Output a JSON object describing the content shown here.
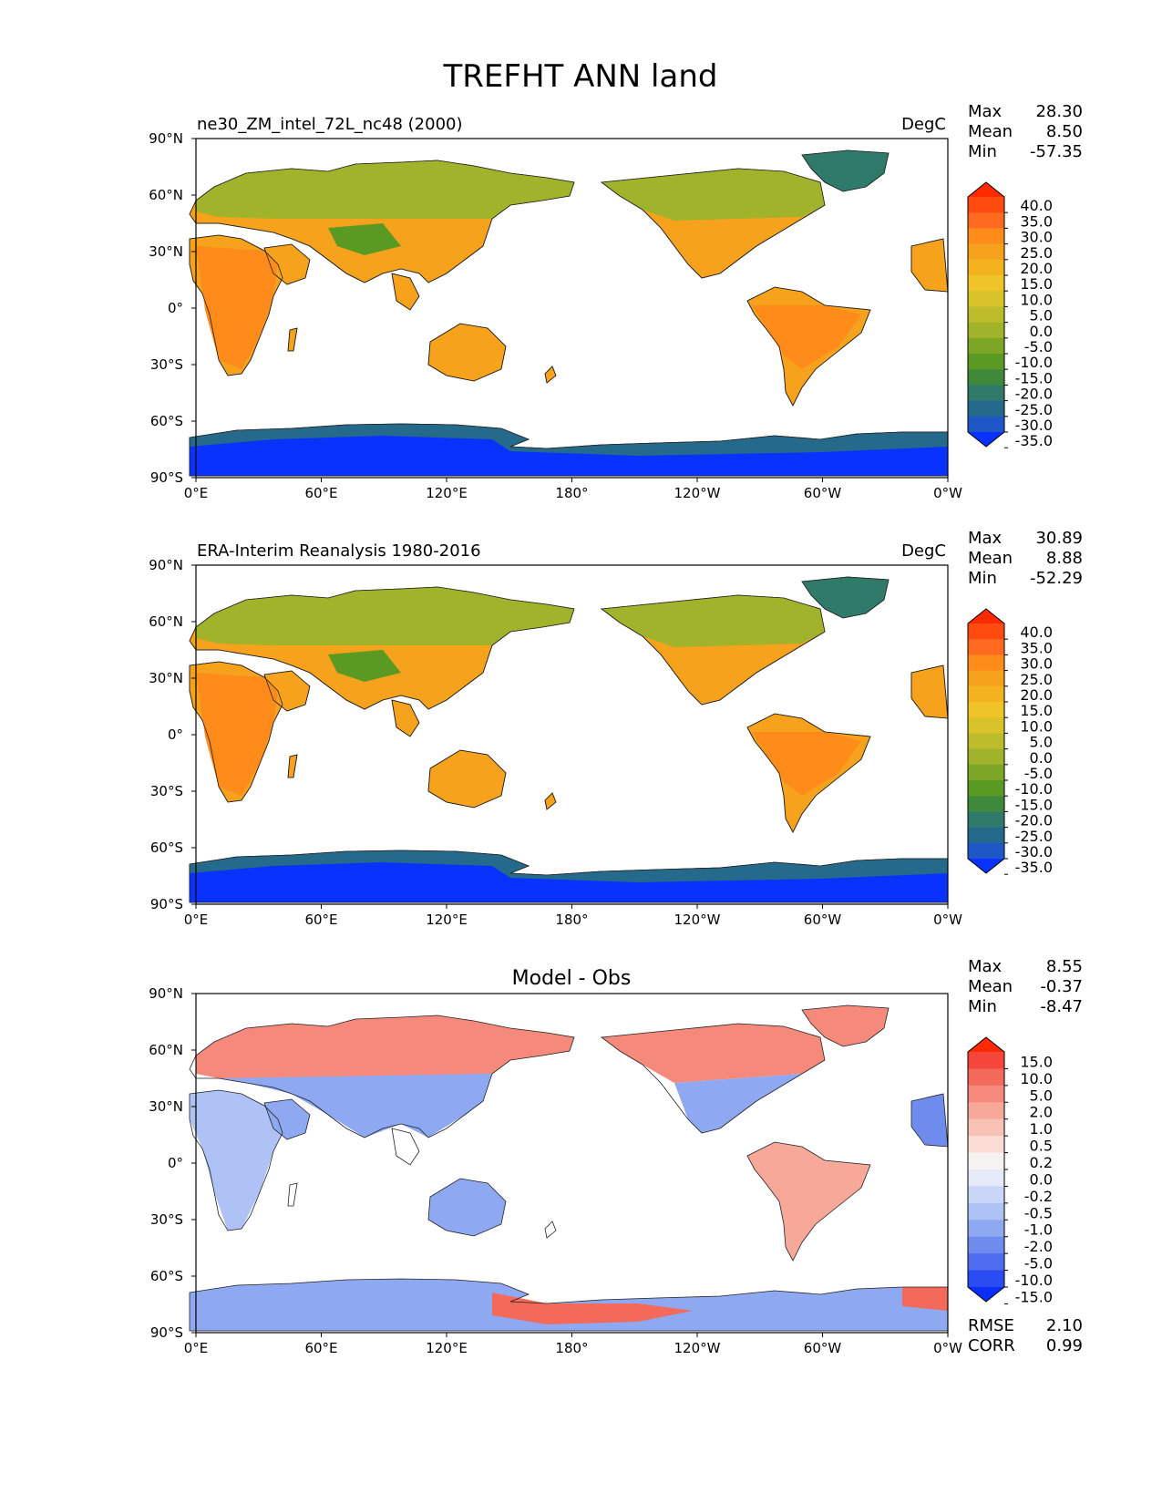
{
  "figure": {
    "title": "TREFHT ANN land"
  },
  "chart_data": [
    {
      "type": "heatmap",
      "panel": "test",
      "left_title": "ne30_ZM_intel_72L_nc48 (2000)",
      "center_title": "",
      "units": "DegC",
      "stats": [
        {
          "label": "Max",
          "value": "28.30"
        },
        {
          "label": "Mean",
          "value": "8.50"
        },
        {
          "label": "Min",
          "value": "-57.35"
        }
      ],
      "colorbar": {
        "levels": [
          "40.0",
          "35.0",
          "30.0",
          "25.0",
          "20.0",
          "15.0",
          "10.0",
          "5.0",
          "0.0",
          "-5.0",
          "-10.0",
          "-15.0",
          "-20.0",
          "-25.0",
          "-30.0",
          "-35.0"
        ],
        "colors": [
          "#ff2a00",
          "#ff4a10",
          "#ff6a20",
          "#ff8c1a",
          "#f7a21c",
          "#f4b21f",
          "#f0c328",
          "#d9c22a",
          "#bdbd2c",
          "#a0b32a",
          "#7ea626",
          "#5a9a22",
          "#3f8a3a",
          "#2f7a6a",
          "#256a8a",
          "#1e58c8",
          "#0a32ff"
        ]
      },
      "x_ticks": [
        "0°E",
        "60°E",
        "120°E",
        "180°",
        "120°W",
        "60°W",
        "0°W"
      ],
      "y_ticks": [
        "90°N",
        "60°N",
        "30°N",
        "0°",
        "30°S",
        "60°S",
        "90°S"
      ]
    },
    {
      "type": "heatmap",
      "panel": "reference",
      "left_title": "ERA-Interim Reanalysis 1980-2016",
      "center_title": "",
      "units": "DegC",
      "stats": [
        {
          "label": "Max",
          "value": "30.89"
        },
        {
          "label": "Mean",
          "value": "8.88"
        },
        {
          "label": "Min",
          "value": "-52.29"
        }
      ],
      "colorbar": {
        "levels": [
          "40.0",
          "35.0",
          "30.0",
          "25.0",
          "20.0",
          "15.0",
          "10.0",
          "5.0",
          "0.0",
          "-5.0",
          "-10.0",
          "-15.0",
          "-20.0",
          "-25.0",
          "-30.0",
          "-35.0"
        ],
        "colors": [
          "#ff2a00",
          "#ff4a10",
          "#ff6a20",
          "#ff8c1a",
          "#f7a21c",
          "#f4b21f",
          "#f0c328",
          "#d9c22a",
          "#bdbd2c",
          "#a0b32a",
          "#7ea626",
          "#5a9a22",
          "#3f8a3a",
          "#2f7a6a",
          "#256a8a",
          "#1e58c8",
          "#0a32ff"
        ]
      },
      "x_ticks": [
        "0°E",
        "60°E",
        "120°E",
        "180°",
        "120°W",
        "60°W",
        "0°W"
      ],
      "y_ticks": [
        "90°N",
        "60°N",
        "30°N",
        "0°",
        "30°S",
        "60°S",
        "90°S"
      ]
    },
    {
      "type": "heatmap",
      "panel": "difference",
      "left_title": "",
      "center_title": "Model - Obs",
      "units": "",
      "stats": [
        {
          "label": "Max",
          "value": "8.55"
        },
        {
          "label": "Mean",
          "value": "-0.37"
        },
        {
          "label": "Min",
          "value": "-8.47"
        }
      ],
      "extra_stats": [
        {
          "label": "RMSE",
          "value": "2.10"
        },
        {
          "label": "CORR",
          "value": "0.99"
        }
      ],
      "colorbar": {
        "levels": [
          "15.0",
          "10.0",
          "5.0",
          "2.0",
          "1.0",
          "0.5",
          "0.2",
          "0.0",
          "-0.2",
          "-0.5",
          "-1.0",
          "-2.0",
          "-5.0",
          "-10.0",
          "-15.0"
        ],
        "colors": [
          "#ff2a00",
          "#f4463a",
          "#f36a5a",
          "#f58a7c",
          "#f7a898",
          "#f9c2b6",
          "#fbdcd4",
          "#f6f2f2",
          "#e6eaf8",
          "#c9d6f7",
          "#aec2f6",
          "#8ea8f2",
          "#6e8cee",
          "#4e6cef",
          "#2a4cf2",
          "#0a2eff"
        ]
      },
      "x_ticks": [
        "0°E",
        "60°E",
        "120°E",
        "180°",
        "120°W",
        "60°W",
        "0°W"
      ],
      "y_ticks": [
        "90°N",
        "60°N",
        "30°N",
        "0°",
        "30°S",
        "60°S",
        "90°S"
      ]
    }
  ]
}
